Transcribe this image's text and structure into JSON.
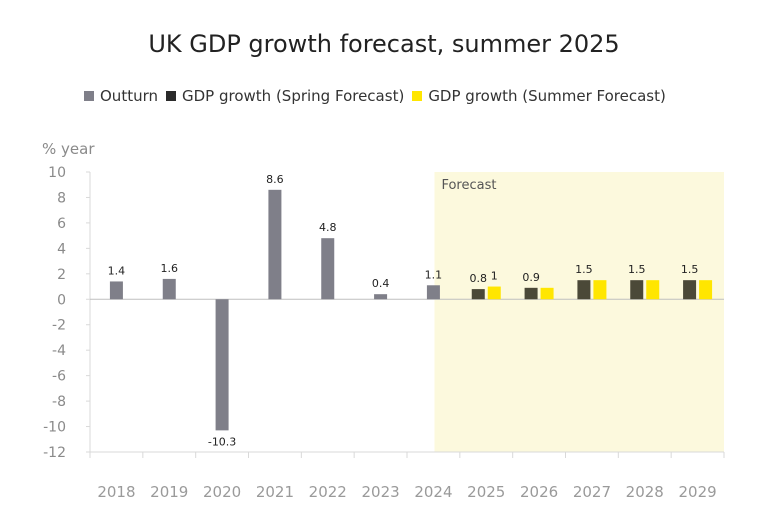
{
  "chart_data": {
    "type": "bar",
    "title": "UK GDP growth forecast, summer 2025",
    "ylabel": "% year",
    "xlabel": "",
    "ylim": [
      -12,
      10
    ],
    "yticks": [
      10,
      8,
      6,
      4,
      2,
      0,
      -2,
      -4,
      -6,
      -8,
      -10,
      -12
    ],
    "categories": [
      "2018",
      "2019",
      "2020",
      "2021",
      "2022",
      "2023",
      "2024",
      "2025",
      "2026",
      "2027",
      "2028",
      "2029"
    ],
    "forecast_label": "Forecast",
    "forecast_start": "2025",
    "legend_position": "top",
    "series": [
      {
        "name": "Outturn",
        "color": "#7f7f89",
        "values": [
          1.4,
          1.6,
          -10.3,
          8.6,
          4.8,
          0.4,
          1.1,
          null,
          null,
          null,
          null,
          null
        ],
        "labels": [
          "1.4",
          "1.6",
          "-10.3",
          "8.6",
          "4.8",
          "0.4",
          "1.1",
          null,
          null,
          null,
          null,
          null
        ]
      },
      {
        "name": "GDP growth (Spring Forecast)",
        "color": "#4b4938",
        "values": [
          null,
          null,
          null,
          null,
          null,
          null,
          null,
          0.8,
          0.9,
          1.5,
          1.5,
          1.5
        ],
        "labels": [
          null,
          null,
          null,
          null,
          null,
          null,
          null,
          "0.8",
          "0.9",
          "1.5",
          "1.5",
          "1.5"
        ]
      },
      {
        "name": "GDP growth (Summer Forecast)",
        "color": "#ffe600",
        "values": [
          null,
          null,
          null,
          null,
          null,
          null,
          null,
          1.0,
          0.9,
          1.5,
          1.5,
          1.5
        ],
        "labels": [
          null,
          null,
          null,
          null,
          null,
          null,
          null,
          "1",
          null,
          null,
          null,
          null
        ]
      }
    ],
    "colors": {
      "forecast_band": "#fcf9dd",
      "axis": "#d9d9d9",
      "zero_line": "#bfbfbf"
    }
  }
}
